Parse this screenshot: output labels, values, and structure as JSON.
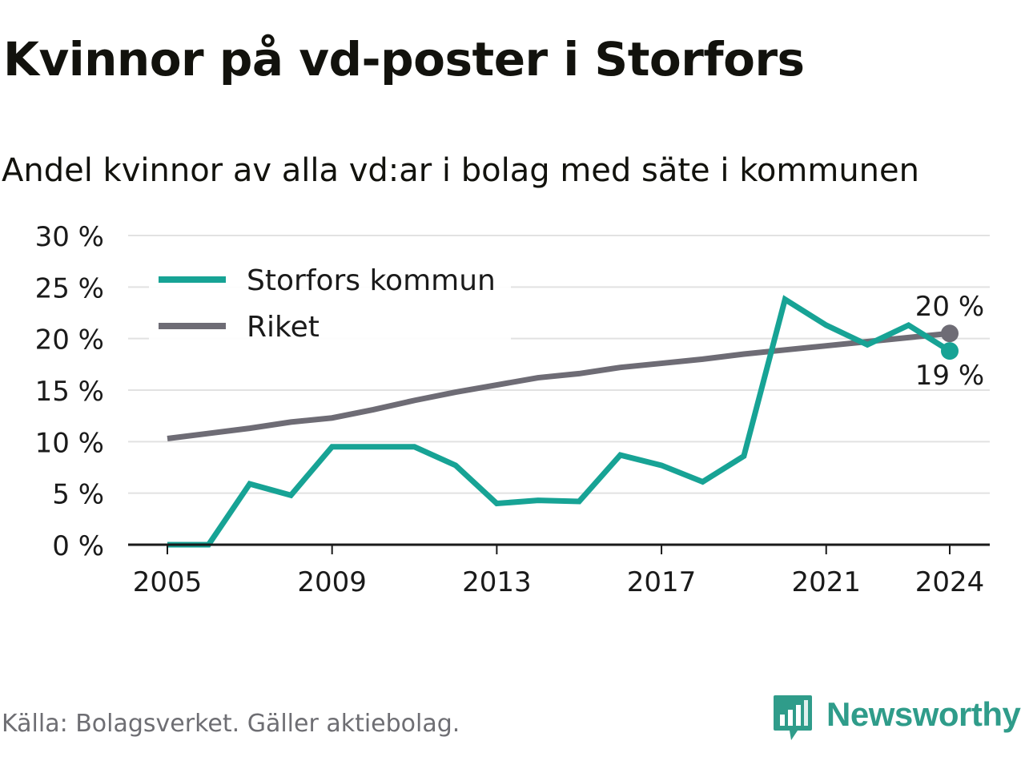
{
  "title": "Kvinnor på vd-poster i Storfors",
  "subtitle": "Andel kvinnor av alla vd:ar i bolag med säte i kommunen",
  "source": "Källa: Bolagsverket. Gäller aktiebolag.",
  "brand": {
    "name": "Newsworthy",
    "icon": "newsworthy-logo-icon",
    "color": "#2f9c8a"
  },
  "chart_data": {
    "type": "line",
    "x": [
      2005,
      2006,
      2007,
      2008,
      2009,
      2010,
      2011,
      2012,
      2013,
      2014,
      2015,
      2016,
      2017,
      2018,
      2019,
      2020,
      2021,
      2022,
      2023,
      2024
    ],
    "x_ticks": [
      {
        "value": 2005,
        "label": "2005"
      },
      {
        "value": 2009,
        "label": "2009"
      },
      {
        "value": 2013,
        "label": "2013"
      },
      {
        "value": 2017,
        "label": "2017"
      },
      {
        "value": 2021,
        "label": "2021"
      },
      {
        "value": 2024,
        "label": "2024"
      }
    ],
    "y_ticks": [
      {
        "value": 0,
        "label": "0 %"
      },
      {
        "value": 5,
        "label": "5 %"
      },
      {
        "value": 10,
        "label": "10 %"
      },
      {
        "value": 15,
        "label": "15 %"
      },
      {
        "value": 20,
        "label": "20 %"
      },
      {
        "value": 25,
        "label": "25 %"
      },
      {
        "value": 30,
        "label": "30 %"
      }
    ],
    "ylim": [
      0,
      30
    ],
    "xlim": [
      2004.05,
      2025
    ],
    "grid": true,
    "legend_position": "top-left",
    "series": [
      {
        "name": "Riket",
        "color": "#6e6c75",
        "values": [
          10.3,
          10.8,
          11.3,
          11.9,
          12.3,
          13.1,
          14.0,
          14.8,
          15.5,
          16.2,
          16.6,
          17.2,
          17.6,
          18.0,
          18.5,
          18.9,
          19.3,
          19.7,
          20.1,
          20.5
        ],
        "end_label": "20 %"
      },
      {
        "name": "Storfors kommun",
        "color": "#17a395",
        "values": [
          0.0,
          0.0,
          5.9,
          4.8,
          9.5,
          9.5,
          9.5,
          7.7,
          4.0,
          4.3,
          4.2,
          8.7,
          7.7,
          6.1,
          8.6,
          23.8,
          21.3,
          19.4,
          21.3,
          18.8
        ],
        "end_label": "19 %"
      }
    ],
    "legend": [
      {
        "label": "Storfors kommun",
        "color": "#17a395"
      },
      {
        "label": "Riket",
        "color": "#6e6c75"
      }
    ]
  }
}
